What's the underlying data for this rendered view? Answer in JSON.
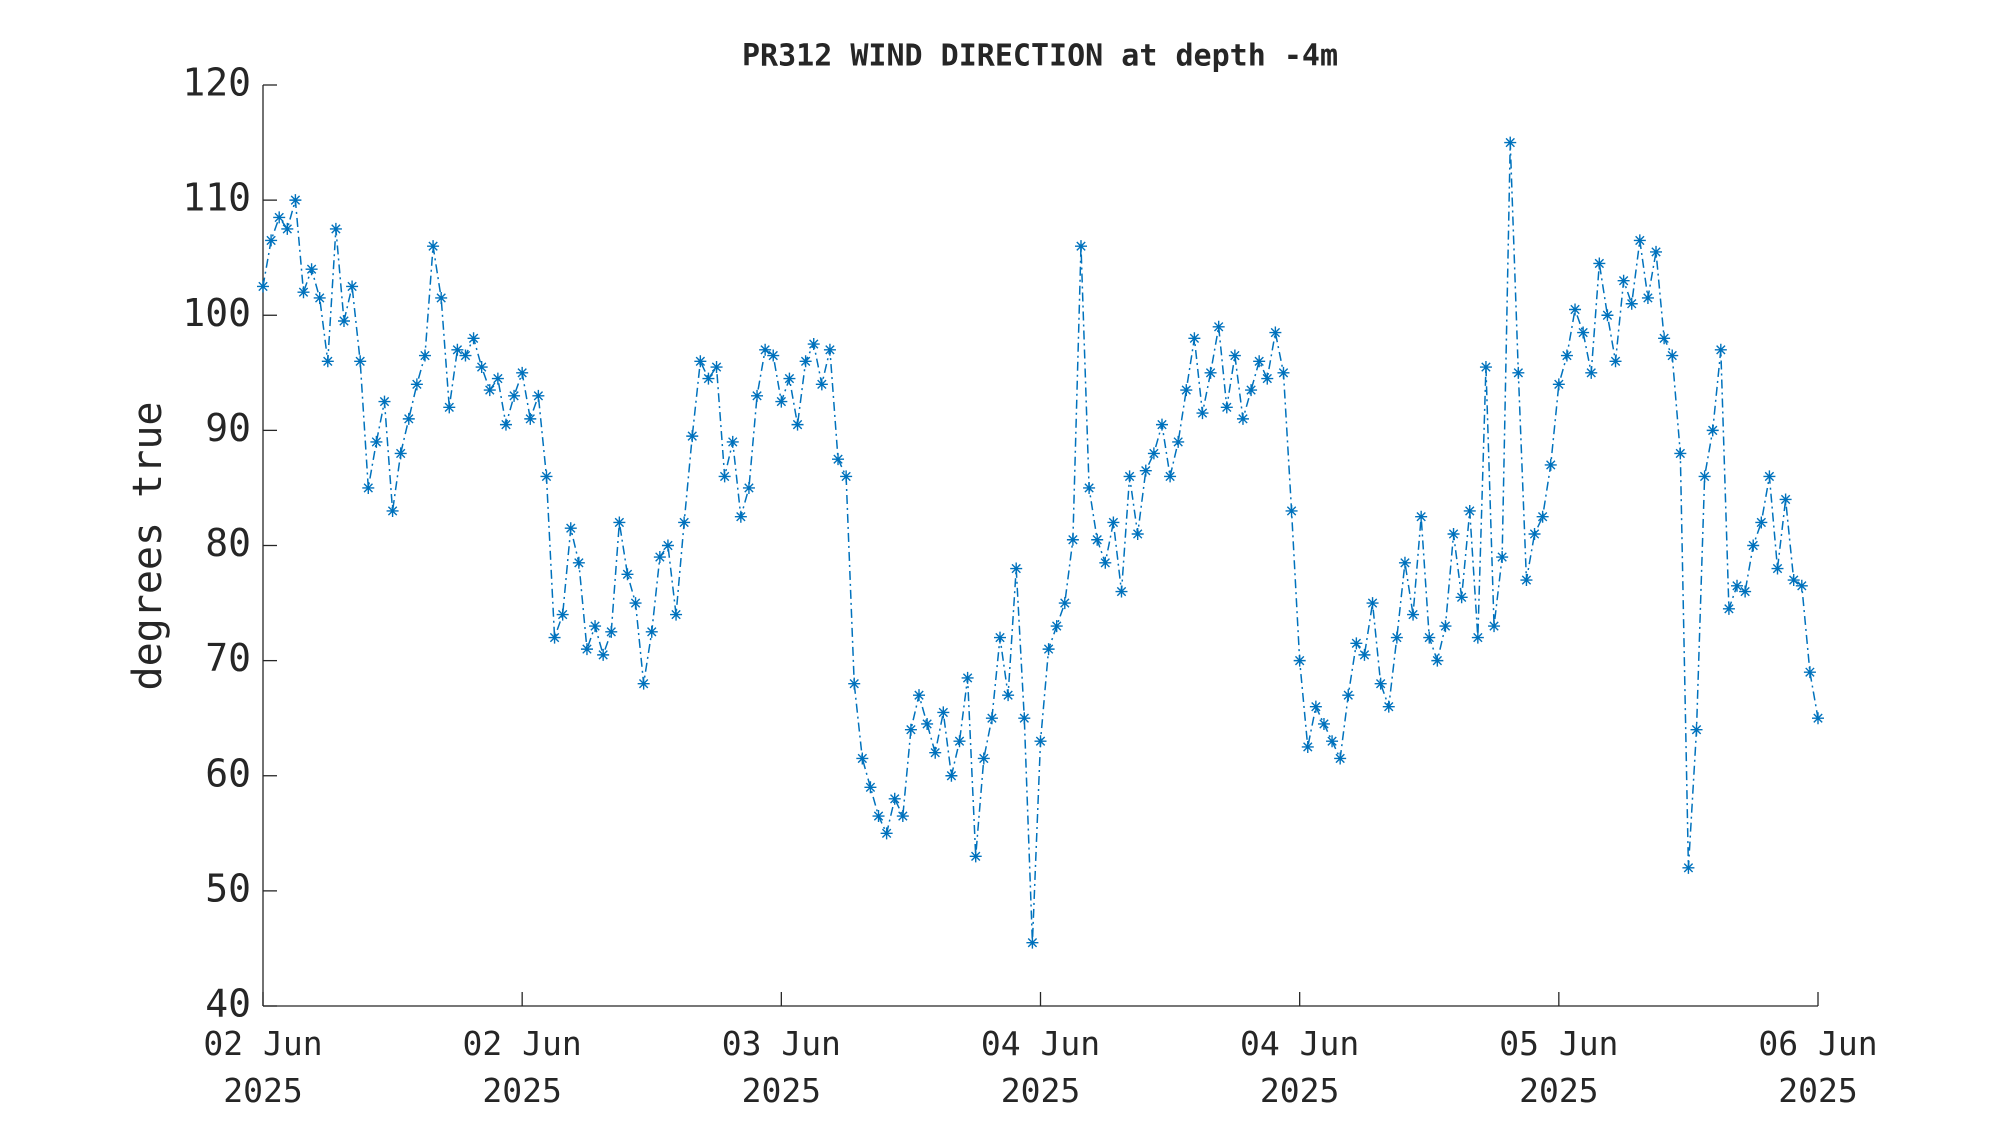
{
  "chart_data": {
    "type": "line",
    "title": "PR312 WIND DIRECTION at depth -4m",
    "ylabel": "degrees true",
    "series": [
      {
        "name": "wind direction",
        "color": "#0072bd",
        "x": [
          0,
          0.5,
          1,
          1.5,
          2,
          2.5,
          3,
          3.5,
          4,
          4.5,
          5,
          5.5,
          6,
          6.5,
          7,
          7.5,
          8,
          8.5,
          9,
          9.5,
          10,
          10.5,
          11,
          11.5,
          12,
          12.5,
          13,
          13.5,
          14,
          14.5,
          15,
          15.5,
          16,
          16.5,
          17,
          17.5,
          18,
          18.5,
          19,
          19.5,
          20,
          20.5,
          21,
          21.5,
          22,
          22.5,
          23,
          23.5,
          24,
          24.5,
          25,
          25.5,
          26,
          26.5,
          27,
          27.5,
          28,
          28.5,
          29,
          29.5,
          30,
          30.5,
          31,
          31.5,
          32,
          32.5,
          33,
          33.5,
          34,
          34.5,
          35,
          35.5,
          36,
          36.5,
          37,
          37.5,
          38,
          38.5,
          39,
          39.5,
          40,
          40.5,
          41,
          41.5,
          42,
          42.5,
          43,
          43.5,
          44,
          44.5,
          45,
          45.5,
          46,
          46.5,
          47,
          47.5,
          48,
          48.5,
          49,
          49.5,
          50,
          50.5,
          51,
          51.5,
          52,
          52.5,
          53,
          53.5,
          54,
          54.5,
          55,
          55.5,
          56,
          56.5,
          57,
          57.5,
          58,
          58.5,
          59,
          59.5,
          60,
          60.5,
          61,
          61.5,
          62,
          62.5,
          63,
          63.5,
          64,
          64.5,
          65,
          65.5,
          66,
          66.5,
          67,
          67.5,
          68,
          68.5,
          69,
          69.5,
          70,
          70.5,
          71,
          71.5,
          72,
          72.5,
          73,
          73.5,
          74,
          74.5,
          75,
          75.5,
          76,
          76.5,
          77,
          77.5,
          78,
          78.5,
          79,
          79.5,
          80,
          80.5,
          81,
          81.5,
          82,
          82.5,
          83,
          83.5,
          84,
          84.5,
          85,
          85.5,
          86,
          86.5,
          87,
          87.5,
          88,
          88.5,
          89,
          89.5,
          90,
          90.5,
          91,
          91.5,
          92,
          92.5,
          93,
          93.5,
          94,
          94.5,
          95,
          95.5,
          96
        ],
        "values": [
          102.5,
          106.5,
          108.5,
          107.5,
          110,
          102,
          104,
          101.5,
          96,
          107.5,
          99.5,
          102.5,
          96,
          85,
          89,
          92.5,
          83,
          88,
          91,
          94,
          96.5,
          106,
          101.5,
          92,
          97,
          96.5,
          98,
          95.5,
          93.5,
          94.5,
          90.5,
          93,
          95,
          91,
          93,
          86,
          72,
          74,
          81.5,
          78.5,
          71,
          73,
          70.5,
          72.5,
          82,
          77.5,
          75,
          68,
          72.5,
          79,
          80,
          74,
          82,
          89.5,
          96,
          94.5,
          95.5,
          86,
          89,
          82.5,
          85,
          93,
          97,
          96.5,
          92.5,
          94.5,
          90.5,
          96,
          97.5,
          94,
          97,
          87.5,
          86,
          68,
          61.5,
          59,
          56.5,
          55,
          58,
          56.5,
          64,
          67,
          64.5,
          62,
          65.5,
          60,
          63,
          68.5,
          53,
          61.5,
          65,
          72,
          67,
          78,
          65,
          45.5,
          63,
          71,
          73,
          75,
          80.5,
          106,
          85,
          80.5,
          78.5,
          82,
          76,
          86,
          81,
          86.5,
          88,
          90.5,
          86,
          89,
          93.5,
          98,
          91.5,
          95,
          99,
          92,
          96.5,
          91,
          93.5,
          96,
          94.5,
          98.5,
          95,
          83,
          70,
          62.5,
          66,
          64.5,
          63,
          61.5,
          67,
          71.5,
          70.5,
          75,
          68,
          66,
          72,
          78.5,
          74,
          82.5,
          72,
          70,
          73,
          81,
          75.5,
          83,
          72,
          95.5,
          73,
          79,
          115,
          95,
          77,
          81,
          82.5,
          87,
          94,
          96.5,
          100.5,
          98.5,
          95,
          104.5,
          100,
          96,
          103,
          101,
          106.5,
          101.5,
          105.5,
          98,
          96.5,
          88,
          52,
          64,
          86,
          90,
          97,
          74.5,
          76.5,
          76,
          80,
          82,
          86,
          78,
          84,
          77,
          76.5,
          69,
          65
        ]
      }
    ],
    "xlim": [
      0,
      96
    ],
    "xticks": [
      {
        "value": 0,
        "label": "02 Jun\n2025"
      },
      {
        "value": 16,
        "label": "02 Jun\n2025"
      },
      {
        "value": 32,
        "label": "03 Jun\n2025"
      },
      {
        "value": 48,
        "label": "04 Jun\n2025"
      },
      {
        "value": 64,
        "label": "04 Jun\n2025"
      },
      {
        "value": 80,
        "label": "05 Jun\n2025"
      },
      {
        "value": 96,
        "label": "06 Jun\n2025"
      }
    ],
    "ylim": [
      40,
      120
    ],
    "yticks": [
      40,
      50,
      60,
      70,
      80,
      90,
      100,
      110,
      120
    ],
    "grid": false
  }
}
